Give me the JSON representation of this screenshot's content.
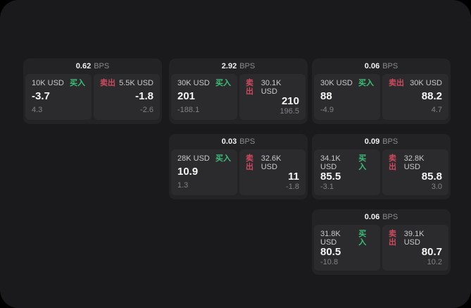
{
  "labels": {
    "bps": "BPS",
    "buy": "买入",
    "sell": "卖出"
  },
  "colors": {
    "buy_green": "#3cbe78",
    "sell_red": "#cd4a5e",
    "surface_bg": "#1a1a1c",
    "card_bg": "#232325",
    "panel_bg": "#2b2b2d"
  },
  "cards": [
    {
      "spread": "0.62",
      "buy": {
        "amount": "10K USD",
        "price": "-3.7",
        "change": "4.3"
      },
      "sell": {
        "amount": "5.5K USD",
        "price": "-1.8",
        "change": "-2.6"
      }
    },
    {
      "spread": "2.92",
      "buy": {
        "amount": "30K USD",
        "price": "201",
        "change": "-188.1"
      },
      "sell": {
        "amount": "30.1K USD",
        "price": "210",
        "change": "196.5"
      }
    },
    {
      "spread": "0.06",
      "buy": {
        "amount": "30K USD",
        "price": "88",
        "change": "-4.9"
      },
      "sell": {
        "amount": "30K USD",
        "price": "88.2",
        "change": "4.7"
      }
    },
    {
      "spread": "0.03",
      "buy": {
        "amount": "28K USD",
        "price": "10.9",
        "change": "1.3"
      },
      "sell": {
        "amount": "32.6K USD",
        "price": "11",
        "change": "-1.8"
      }
    },
    {
      "spread": "0.09",
      "buy": {
        "amount": "34.1K USD",
        "price": "85.5",
        "change": "-3.1"
      },
      "sell": {
        "amount": "32.8K USD",
        "price": "85.8",
        "change": "3.0"
      }
    },
    {
      "spread": "0.06",
      "buy": {
        "amount": "31.8K USD",
        "price": "80.5",
        "change": "-10.8"
      },
      "sell": {
        "amount": "39.1K USD",
        "price": "80.7",
        "change": "10.2"
      }
    }
  ]
}
